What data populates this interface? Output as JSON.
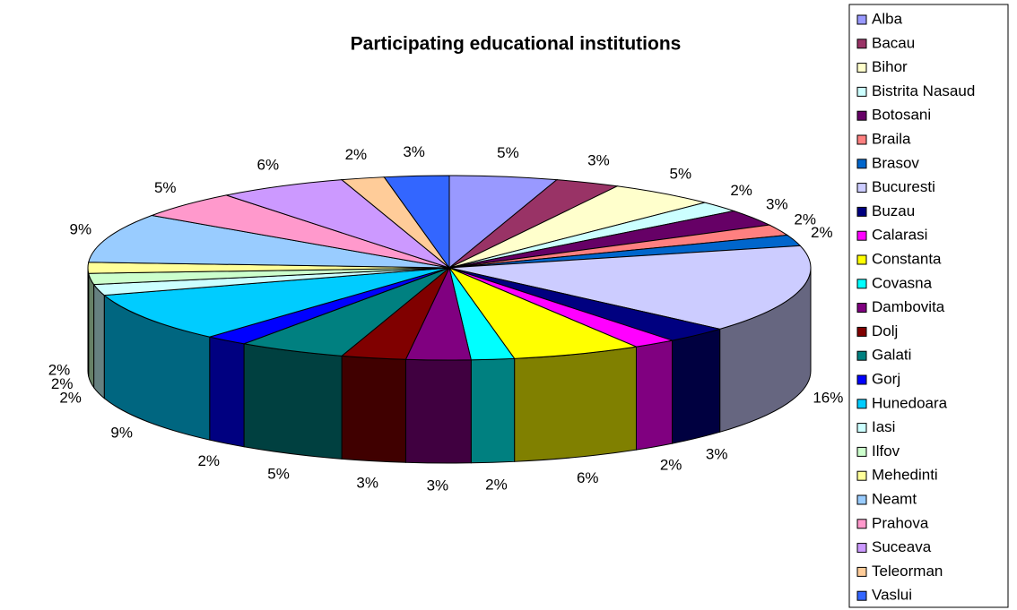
{
  "chart_data": {
    "type": "pie3d",
    "title": "Participating educational institutions",
    "categories": [
      "Alba",
      "Bacau",
      "Bihor",
      "Bistrita Nasaud",
      "Botosani",
      "Braila",
      "Brasov",
      "Bucuresti",
      "Buzau",
      "Calarasi",
      "Constanta",
      "Covasna",
      "Dambovita",
      "Dolj",
      "Galati",
      "Gorj",
      "Hunedoara",
      "Iasi",
      "Ilfov",
      "Mehedinti",
      "Neamt",
      "Prahova",
      "Suceava",
      "Teleorman",
      "Vaslui"
    ],
    "values": [
      5,
      3,
      5,
      2,
      3,
      2,
      2,
      16,
      3,
      2,
      6,
      2,
      3,
      3,
      5,
      2,
      9,
      2,
      2,
      2,
      9,
      5,
      6,
      2,
      3
    ],
    "value_labels": [
      "5%",
      "3%",
      "5%",
      "2%",
      "3%",
      "2%",
      "2%",
      "16%",
      "3%",
      "2%",
      "6%",
      "2%",
      "3%",
      "3%",
      "5%",
      "2%",
      "9%",
      "2%",
      "2%",
      "2%",
      "9%",
      "5%",
      "6%",
      "2%",
      "3%"
    ],
    "colors": [
      "#9999ff",
      "#993366",
      "#ffffcc",
      "#ccffff",
      "#660066",
      "#ff8080",
      "#0066cc",
      "#ccccff",
      "#000080",
      "#ff00ff",
      "#ffff00",
      "#00ffff",
      "#800080",
      "#800000",
      "#008080",
      "#0000ff",
      "#00ccff",
      "#ccffff",
      "#ccffcc",
      "#ffff99",
      "#99ccff",
      "#ff99cc",
      "#cc99ff",
      "#ffcc99",
      "#3366ff"
    ],
    "legend": "right"
  }
}
